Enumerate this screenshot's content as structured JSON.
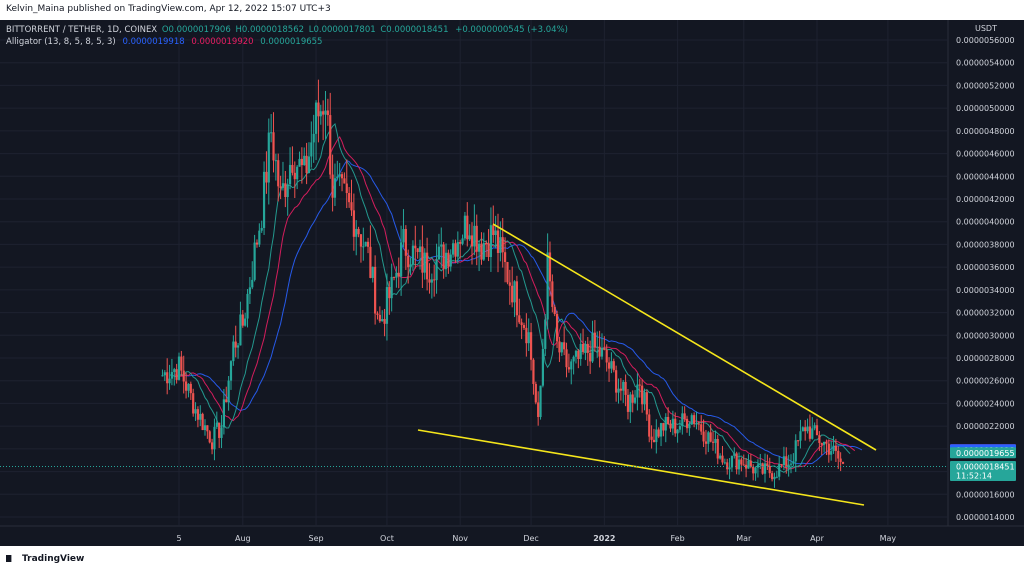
{
  "header": {
    "published": "Kelvin_Maina published on TradingView.com, Apr 12, 2022 15:07 UTC+3"
  },
  "legend": {
    "symbol": "BITTORRENT / TETHER, 1D, COINEX",
    "open": "O0.0000017906",
    "high": "H0.0000018562",
    "low": "L0.0000017801",
    "close": "C0.0000018451",
    "change": "+0.0000000545 (+3.04%)",
    "alligator_label": "Alligator (13, 8, 5, 8, 5, 3)",
    "alligator_jaw": "0.0000019918",
    "alligator_teeth": "0.0000019920",
    "alligator_lips": "0.0000019655"
  },
  "footer": {
    "brand": "TradingView"
  },
  "colors": {
    "background": "#131722",
    "bull": "#26a69a",
    "bear": "#ef5350",
    "jaw": "#2962ff",
    "teeth": "#e91e63",
    "lips": "#26a69a",
    "trendline": "#f5e61b",
    "badge_teeth": "#e91e63",
    "badge_jaw": "#2962ff",
    "badge_lips": "#26a69a",
    "badge_price": "#26a69a"
  },
  "chart_data": {
    "type": "candlestick",
    "quote_currency": "USDT",
    "y_axis": {
      "tick_labels": [
        "0.0000056000",
        "0.0000054000",
        "0.0000052000",
        "0.0000050000",
        "0.0000048000",
        "0.0000046000",
        "0.0000044000",
        "0.0000042000",
        "0.0000040000",
        "0.0000038000",
        "0.0000036000",
        "0.0000034000",
        "0.0000032000",
        "0.0000030000",
        "0.0000028000",
        "0.0000026000",
        "0.0000024000",
        "0.0000022000",
        "0.0000020000",
        "0.0000018000",
        "0.0000016000",
        "0.0000014000"
      ],
      "ylim": [
        1.3e-06,
        5.7e-06
      ]
    },
    "x_axis": {
      "tick_labels": [
        "5",
        "Aug",
        "Sep",
        "Oct",
        "Nov",
        "Dec",
        "2022",
        "Feb",
        "Mar",
        "Apr",
        "May"
      ],
      "tick_dates": [
        "2021-07-05",
        "2021-08-01",
        "2021-09-01",
        "2021-10-01",
        "2021-11-01",
        "2021-12-01",
        "2022-01-01",
        "2022-02-01",
        "2022-03-01",
        "2022-04-01",
        "2022-05-01"
      ]
    },
    "price_levels": [
      {
        "label": "0.0000019920",
        "series": "teeth"
      },
      {
        "label": "0.0000019918",
        "series": "jaw"
      },
      {
        "label": "0.0000019655",
        "series": "lips"
      },
      {
        "label": "0.0000018451",
        "series": "price",
        "countdown": "11:52:14"
      }
    ],
    "close_path": [
      [
        "2021-06-28",
        2.65e-06
      ],
      [
        "2021-07-05",
        2.72e-06
      ],
      [
        "2021-07-12",
        2.35e-06
      ],
      [
        "2021-07-19",
        2.08e-06
      ],
      [
        "2021-07-23",
        2.2e-06
      ],
      [
        "2021-07-28",
        2.9e-06
      ],
      [
        "2021-08-01",
        3.1e-06
      ],
      [
        "2021-08-05",
        3.6e-06
      ],
      [
        "2021-08-09",
        4.1e-06
      ],
      [
        "2021-08-13",
        4.8e-06
      ],
      [
        "2021-08-17",
        4.2e-06
      ],
      [
        "2021-08-22",
        4.6e-06
      ],
      [
        "2021-08-27",
        4.4e-06
      ],
      [
        "2021-09-01",
        4.9e-06
      ],
      [
        "2021-09-05",
        5.1e-06
      ],
      [
        "2021-09-08",
        4.3e-06
      ],
      [
        "2021-09-13",
        4.2e-06
      ],
      [
        "2021-09-18",
        4e-06
      ],
      [
        "2021-09-23",
        3.7e-06
      ],
      [
        "2021-09-28",
        3.1e-06
      ],
      [
        "2021-10-03",
        3.4e-06
      ],
      [
        "2021-10-08",
        3.8e-06
      ],
      [
        "2021-10-13",
        3.7e-06
      ],
      [
        "2021-10-18",
        3.6e-06
      ],
      [
        "2021-10-25",
        3.7e-06
      ],
      [
        "2021-11-01",
        3.9e-06
      ],
      [
        "2021-11-05",
        4e-06
      ],
      [
        "2021-11-10",
        3.8e-06
      ],
      [
        "2021-11-15",
        3.9e-06
      ],
      [
        "2021-11-20",
        3.6e-06
      ],
      [
        "2021-11-25",
        3.3e-06
      ],
      [
        "2021-11-30",
        3e-06
      ],
      [
        "2021-12-04",
        2.2e-06
      ],
      [
        "2021-12-08",
        3.6e-06
      ],
      [
        "2021-12-12",
        2.9e-06
      ],
      [
        "2021-12-17",
        2.7e-06
      ],
      [
        "2021-12-22",
        2.8e-06
      ],
      [
        "2021-12-27",
        2.9e-06
      ],
      [
        "2022-01-01",
        2.8e-06
      ],
      [
        "2022-01-06",
        2.6e-06
      ],
      [
        "2022-01-11",
        2.4e-06
      ],
      [
        "2022-01-16",
        2.6e-06
      ],
      [
        "2022-01-21",
        2.1e-06
      ],
      [
        "2022-01-26",
        2.2e-06
      ],
      [
        "2022-02-01",
        2.2e-06
      ],
      [
        "2022-02-07",
        2.3e-06
      ],
      [
        "2022-02-14",
        2.1e-06
      ],
      [
        "2022-02-21",
        1.9e-06
      ],
      [
        "2022-02-28",
        1.9e-06
      ],
      [
        "2022-03-07",
        1.8e-06
      ],
      [
        "2022-03-14",
        1.8e-06
      ],
      [
        "2022-03-21",
        1.9e-06
      ],
      [
        "2022-03-27",
        2.2e-06
      ],
      [
        "2022-04-01",
        2.1e-06
      ],
      [
        "2022-04-07",
        2e-06
      ],
      [
        "2022-04-12",
        1.85e-06
      ]
    ]
  }
}
